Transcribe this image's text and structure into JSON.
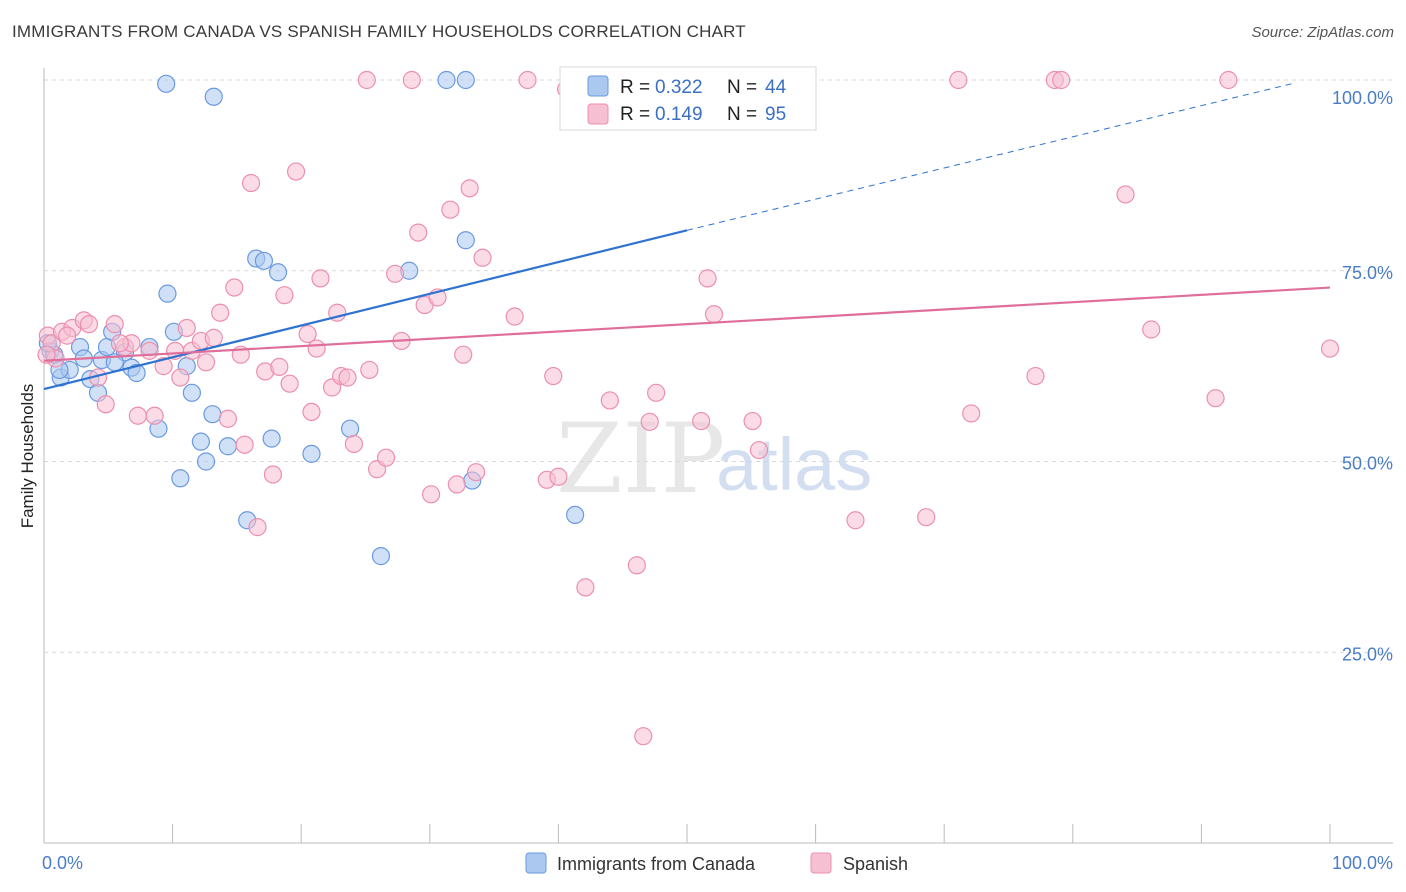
{
  "chart_data": {
    "type": "scatter",
    "title": "IMMIGRANTS FROM CANADA VS SPANISH FAMILY HOUSEHOLDS CORRELATION CHART",
    "source": "Source: ZipAtlas.com",
    "ylabel": "Family Households",
    "xlim": [
      0,
      100
    ],
    "ylim": [
      0,
      102
    ],
    "x_tick_labels": [
      "0.0%",
      "100.0%"
    ],
    "y_ticks": [
      {
        "value": 25,
        "label": "25.0%"
      },
      {
        "value": 50,
        "label": "50.0%"
      },
      {
        "value": 75,
        "label": "75.0%"
      },
      {
        "value": 100,
        "label": "100.0%"
      }
    ],
    "legend_box": {
      "r_label": "R =",
      "n_label": "N =",
      "rows": [
        {
          "r": "0.322",
          "n": "44"
        },
        {
          "r": "0.149",
          "n": "95"
        }
      ]
    },
    "watermark": {
      "zip": "ZIP",
      "atlas": "atlas"
    },
    "series": [
      {
        "name": "Immigrants from Canada",
        "fill": "#aac8f0",
        "stroke": "#6a9ae0",
        "line_color": "#2f72d0",
        "trend": {
          "x0": 0,
          "y0": 59.5,
          "x1": 50,
          "y1": 80.3,
          "dash_x1": 97,
          "dash_y1": 99.5
        },
        "points": [
          [
            0.5,
            64.5
          ],
          [
            0.8,
            64
          ],
          [
            1.3,
            61
          ],
          [
            2,
            62
          ],
          [
            2.8,
            65
          ],
          [
            3.1,
            63.5
          ],
          [
            3.6,
            60.8
          ],
          [
            4.2,
            59
          ],
          [
            4.5,
            63.3
          ],
          [
            4.9,
            65
          ],
          [
            5.3,
            67
          ],
          [
            6.3,
            64.3
          ],
          [
            6.8,
            62.3
          ],
          [
            7.2,
            61.6
          ],
          [
            8.2,
            65
          ],
          [
            8.9,
            54.3
          ],
          [
            9.6,
            72
          ],
          [
            10.1,
            67
          ],
          [
            10.6,
            47.8
          ],
          [
            11.1,
            62.5
          ],
          [
            11.5,
            59
          ],
          [
            12.2,
            52.6
          ],
          [
            12.6,
            50
          ],
          [
            13.1,
            56.2
          ],
          [
            14.3,
            52
          ],
          [
            15.8,
            42.3
          ],
          [
            16.5,
            76.6
          ],
          [
            17.1,
            76.3
          ],
          [
            18.2,
            74.8
          ],
          [
            17.7,
            53
          ],
          [
            20.8,
            51
          ],
          [
            23.8,
            54.3
          ],
          [
            26.2,
            37.6
          ],
          [
            28.4,
            75
          ],
          [
            31.3,
            100
          ],
          [
            32.8,
            100
          ],
          [
            32.8,
            79
          ],
          [
            33.3,
            47.5
          ],
          [
            41.3,
            43
          ],
          [
            9.5,
            99.5
          ],
          [
            13.2,
            97.8
          ],
          [
            0.3,
            65.5
          ],
          [
            1.2,
            62
          ],
          [
            5.5,
            63
          ]
        ]
      },
      {
        "name": "Spanish",
        "fill": "#f7c0d2",
        "stroke": "#ec8fae",
        "line_color": "#e06e9a",
        "trend": {
          "x0": 0,
          "y0": 63.2,
          "x1": 100,
          "y1": 72.8
        },
        "points": [
          [
            0.3,
            66.5
          ],
          [
            0.6,
            65.5
          ],
          [
            0.9,
            63.5
          ],
          [
            1.4,
            67
          ],
          [
            2.2,
            67.5
          ],
          [
            3.1,
            68.5
          ],
          [
            3.5,
            68
          ],
          [
            4.2,
            61
          ],
          [
            4.8,
            57.5
          ],
          [
            5.5,
            68
          ],
          [
            6.3,
            65
          ],
          [
            6.8,
            65.5
          ],
          [
            7.3,
            56
          ],
          [
            8.2,
            64.5
          ],
          [
            8.6,
            56
          ],
          [
            9.3,
            62.5
          ],
          [
            10.2,
            64.5
          ],
          [
            10.6,
            61
          ],
          [
            11.1,
            67.5
          ],
          [
            11.5,
            64.5
          ],
          [
            12.2,
            65.8
          ],
          [
            12.6,
            63
          ],
          [
            13.2,
            66.2
          ],
          [
            13.7,
            69.5
          ],
          [
            14.3,
            55.6
          ],
          [
            14.8,
            72.8
          ],
          [
            15.3,
            64
          ],
          [
            15.6,
            52.2
          ],
          [
            16.1,
            86.5
          ],
          [
            16.6,
            41.4
          ],
          [
            17.2,
            61.8
          ],
          [
            17.8,
            48.3
          ],
          [
            18.3,
            62.4
          ],
          [
            18.7,
            71.8
          ],
          [
            19.1,
            60.2
          ],
          [
            19.6,
            88
          ],
          [
            20.5,
            66.7
          ],
          [
            21.2,
            64.8
          ],
          [
            20.8,
            56.5
          ],
          [
            21.5,
            74
          ],
          [
            22.4,
            59.7
          ],
          [
            22.8,
            69.5
          ],
          [
            23.1,
            61.2
          ],
          [
            23.6,
            61
          ],
          [
            24.1,
            52.3
          ],
          [
            25.1,
            100
          ],
          [
            25.9,
            49
          ],
          [
            26.6,
            50.5
          ],
          [
            27.3,
            74.6
          ],
          [
            27.8,
            65.8
          ],
          [
            28.6,
            100
          ],
          [
            29.1,
            80
          ],
          [
            29.6,
            70.5
          ],
          [
            30.1,
            45.7
          ],
          [
            30.6,
            71.5
          ],
          [
            31.6,
            83
          ],
          [
            32.1,
            47
          ],
          [
            32.6,
            64
          ],
          [
            33.1,
            85.8
          ],
          [
            33.6,
            48.6
          ],
          [
            34.1,
            76.7
          ],
          [
            36.6,
            69
          ],
          [
            37.6,
            100
          ],
          [
            39.1,
            47.6
          ],
          [
            39.6,
            61.2
          ],
          [
            40.6,
            98.8
          ],
          [
            42.1,
            33.5
          ],
          [
            46.1,
            36.4
          ],
          [
            46.6,
            14
          ],
          [
            47.1,
            55.2
          ],
          [
            47.6,
            59
          ],
          [
            49.6,
            100
          ],
          [
            51.1,
            55.3
          ],
          [
            51.6,
            74
          ],
          [
            52.1,
            69.3
          ],
          [
            55.1,
            55.3
          ],
          [
            55.6,
            51.5
          ],
          [
            63.1,
            42.3
          ],
          [
            68.6,
            42.7
          ],
          [
            71.1,
            100
          ],
          [
            72.1,
            56.3
          ],
          [
            77.1,
            61.2
          ],
          [
            78.6,
            100
          ],
          [
            79.1,
            100
          ],
          [
            84.1,
            85
          ],
          [
            86.1,
            67.3
          ],
          [
            91.1,
            58.3
          ],
          [
            92.1,
            100
          ],
          [
            100,
            64.8
          ],
          [
            0.2,
            64
          ],
          [
            1.8,
            66.5
          ],
          [
            5.9,
            65.5
          ],
          [
            25.3,
            62
          ],
          [
            40,
            48
          ],
          [
            44,
            58
          ]
        ]
      }
    ]
  }
}
